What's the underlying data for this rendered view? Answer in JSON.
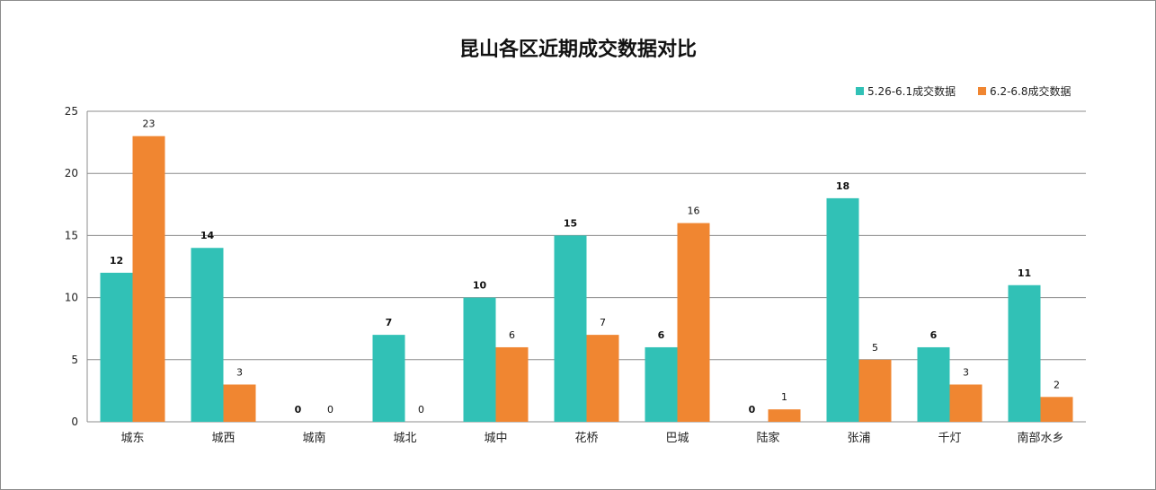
{
  "chart_data": {
    "type": "bar",
    "title": "昆山各区近期成交数据对比",
    "xlabel": "",
    "ylabel": "",
    "ylim": [
      0,
      25
    ],
    "yticks": [
      0,
      5,
      10,
      15,
      20,
      25
    ],
    "grid": true,
    "legend_position": "top-right",
    "categories": [
      "城东",
      "城西",
      "城南",
      "城北",
      "城中",
      "花桥",
      "巴城",
      "陆家",
      "张浦",
      "千灯",
      "南部水乡"
    ],
    "series": [
      {
        "name": "5.26-6.1成交数据",
        "color": "#31c1b6",
        "values": [
          12,
          14,
          0,
          7,
          10,
          15,
          6,
          0,
          18,
          6,
          11
        ]
      },
      {
        "name": "6.2-6.8成交数据",
        "color": "#f08631",
        "values": [
          23,
          3,
          0,
          0,
          6,
          7,
          16,
          1,
          5,
          3,
          2
        ]
      }
    ]
  }
}
